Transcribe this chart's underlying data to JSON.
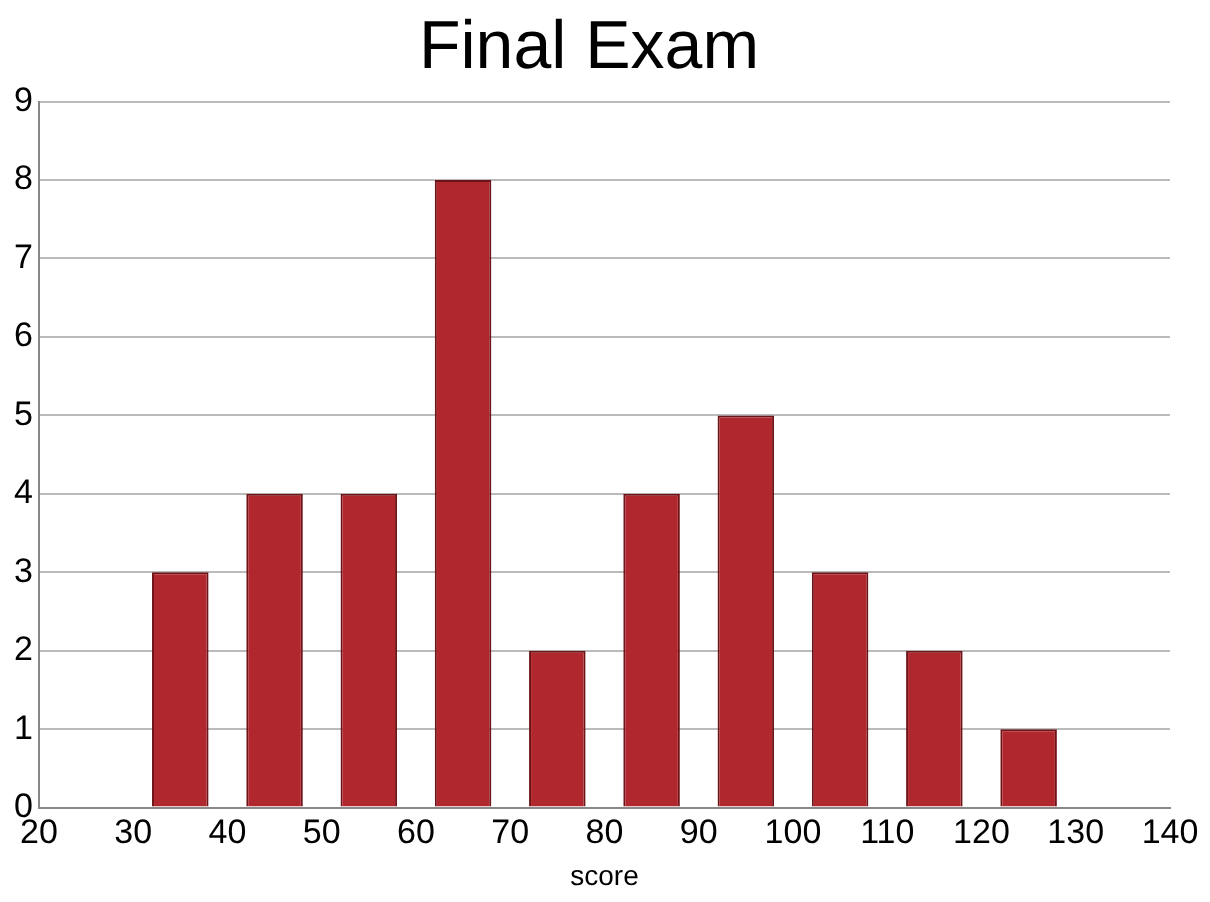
{
  "chart_data": {
    "type": "histogram",
    "title": "Final Exam",
    "xlabel": "score",
    "bins": [
      30,
      40,
      50,
      60,
      70,
      80,
      90,
      100,
      110,
      120,
      130
    ],
    "values": [
      3,
      4,
      4,
      8,
      2,
      4,
      5,
      3,
      2,
      1
    ],
    "color": "#b0282e",
    "xlim": [
      20,
      140
    ],
    "xticks": [
      20,
      30,
      40,
      50,
      60,
      70,
      80,
      90,
      100,
      110,
      120,
      130,
      140
    ],
    "ylim": [
      0,
      9
    ],
    "yticks": [
      0,
      1,
      2,
      3,
      4,
      5,
      6,
      7,
      8,
      9
    ],
    "grid": "y",
    "legend": false
  }
}
